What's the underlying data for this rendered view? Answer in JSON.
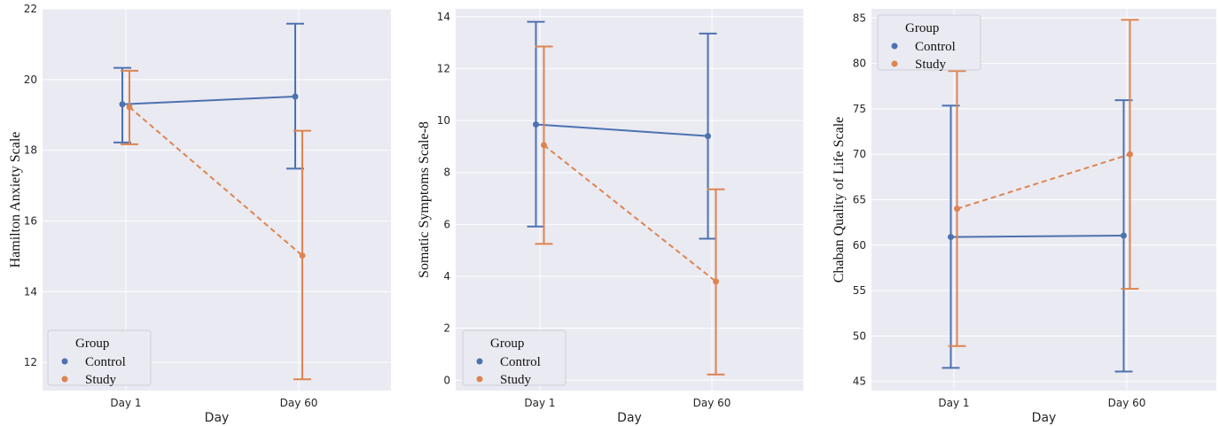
{
  "chart_data": [
    {
      "type": "line",
      "categories": [
        "Day 1",
        "Day 60"
      ],
      "xlabel": "Day",
      "ylabel": "Hamilton Anxiety Scale",
      "ylim": [
        11.2,
        22
      ],
      "yticks": [
        12,
        14,
        16,
        18,
        20,
        22
      ],
      "legend": {
        "title": "Group",
        "position": "lower-left"
      },
      "grid": true,
      "series": [
        {
          "name": "Control",
          "color": "#4c72b0",
          "linestyle": "solid",
          "values": [
            19.3,
            19.52
          ],
          "ci_low": [
            18.22,
            17.48
          ],
          "ci_high": [
            20.33,
            21.58
          ]
        },
        {
          "name": "Study",
          "color": "#dd8452",
          "linestyle": "dashed",
          "values": [
            19.22,
            15.02
          ],
          "ci_low": [
            18.17,
            11.52
          ],
          "ci_high": [
            20.25,
            18.55
          ]
        }
      ]
    },
    {
      "type": "line",
      "categories": [
        "Day 1",
        "Day 60"
      ],
      "xlabel": "Day",
      "ylabel": "Somatic Symptoms Scale-8",
      "ylim": [
        -0.4,
        14.3
      ],
      "yticks": [
        0,
        2,
        4,
        6,
        8,
        10,
        12,
        14
      ],
      "legend": {
        "title": "Group",
        "position": "lower-left"
      },
      "grid": true,
      "series": [
        {
          "name": "Control",
          "color": "#4c72b0",
          "linestyle": "solid",
          "values": [
            9.85,
            9.4
          ],
          "ci_low": [
            5.92,
            5.45
          ],
          "ci_high": [
            13.8,
            13.35
          ]
        },
        {
          "name": "Study",
          "color": "#dd8452",
          "linestyle": "dashed",
          "values": [
            9.05,
            3.8
          ],
          "ci_low": [
            5.25,
            0.22
          ],
          "ci_high": [
            12.85,
            7.35
          ]
        }
      ]
    },
    {
      "type": "line",
      "categories": [
        "Day 1",
        "Day 60"
      ],
      "xlabel": "Day",
      "ylabel": "Chaban Quality of Life Scale",
      "ylim": [
        44,
        86
      ],
      "yticks": [
        45,
        50,
        55,
        60,
        65,
        70,
        75,
        80,
        85
      ],
      "legend": {
        "title": "Group",
        "position": "upper-left"
      },
      "grid": true,
      "series": [
        {
          "name": "Control",
          "color": "#4c72b0",
          "linestyle": "solid",
          "values": [
            60.9,
            61.05
          ],
          "ci_low": [
            46.5,
            46.1
          ],
          "ci_high": [
            75.35,
            75.95
          ]
        },
        {
          "name": "Study",
          "color": "#dd8452",
          "linestyle": "dashed",
          "values": [
            64.0,
            70.0
          ],
          "ci_low": [
            48.9,
            55.2
          ],
          "ci_high": [
            79.15,
            84.8
          ]
        }
      ]
    }
  ]
}
